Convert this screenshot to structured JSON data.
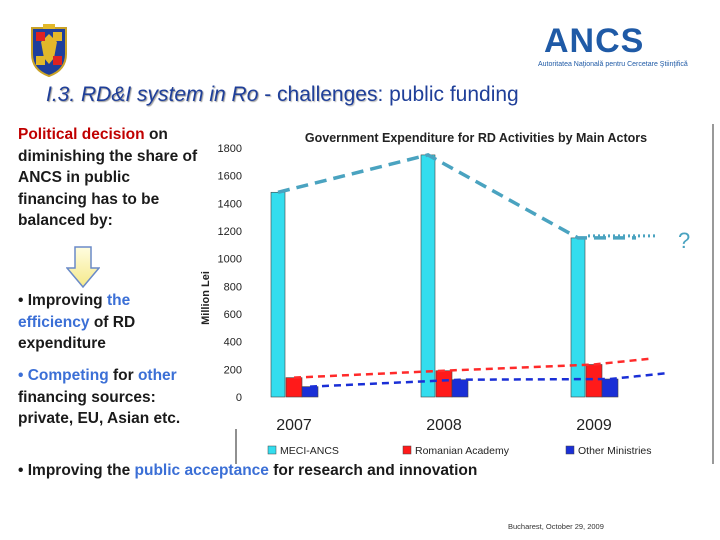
{
  "header": {
    "logo_name": "ANCS",
    "logo_subtitle": "Autoritatea Naţională pentru Cercetare Ştiinţifică",
    "crest_icon": "romania-coat-of-arms-icon",
    "title_part1": "I.3. RD&I system in Ro",
    "title_part2": " - challenges",
    "title_part3": ": public funding"
  },
  "left": {
    "line1_red": "Political decision",
    "line1_rest": "on diminishing the share of ANCS in public financing has to be balanced by:",
    "arrow_icon": "down-arrow-icon",
    "b1_pre": "• Improving ",
    "b1_blue": "the efficiency",
    "b1_post": " of RD expenditure",
    "b2_blue1": "• Competing",
    "b2_mid": " for ",
    "b2_blue2": "other",
    "b2_post": " financing sources: private, EU, Asian etc.",
    "b3_pre": "• Improving the ",
    "b3_blue": "public acceptance",
    "b3_post": " for research and innovation"
  },
  "footer": {
    "text": "Bucharest, October 29, 2009"
  },
  "chart_data": {
    "type": "bar",
    "title": "Government Expenditure for RD Activities by Main Actors",
    "ylabel": "Million Lei",
    "xlabel": "",
    "categories": [
      "2007",
      "2008",
      "2009"
    ],
    "yticks": [
      "0",
      "200",
      "400",
      "600",
      "800",
      "1000",
      "1200",
      "1400",
      "1600",
      "1800"
    ],
    "ylim": [
      0,
      1800
    ],
    "series": [
      {
        "name": "MECI-ANCS",
        "values": [
          1480,
          1750,
          1150
        ],
        "color": "#33ddee"
      },
      {
        "name": "Romanian Academy",
        "values": [
          140,
          190,
          235
        ],
        "color": "#ff1a1a"
      },
      {
        "name": "Other Ministries",
        "values": [
          75,
          125,
          130
        ],
        "color": "#1a2fd6"
      }
    ],
    "annotation": "?",
    "legend_position": "bottom"
  }
}
